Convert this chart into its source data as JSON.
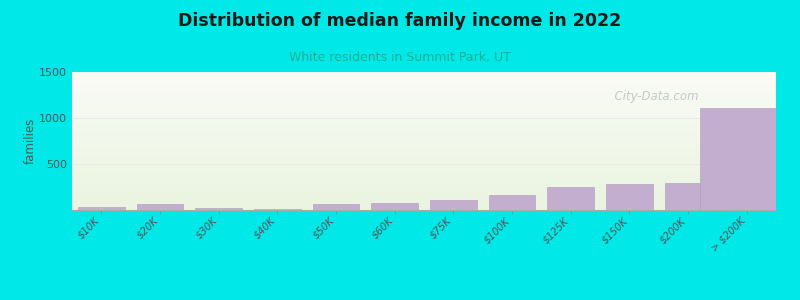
{
  "title": "Distribution of median family income in 2022",
  "subtitle": "White residents in Summit Park, UT",
  "categories": [
    "$10K",
    "$20K",
    "$30K",
    "$40K",
    "$50K",
    "$60K",
    "$75K",
    "$100K",
    "$125K",
    "$150K",
    "$200K",
    "> $200K"
  ],
  "values": [
    28,
    65,
    18,
    12,
    70,
    80,
    110,
    165,
    250,
    285,
    290,
    1110
  ],
  "bar_color": "#c4aed0",
  "bar_edge_color": "#b09ac0",
  "background_outer": "#00e8e8",
  "title_color": "#1a1a1a",
  "subtitle_color": "#20b090",
  "ylabel": "families",
  "ylim": [
    0,
    1500
  ],
  "yticks": [
    0,
    500,
    1000,
    1500
  ],
  "grid_color": "#e8e8e8",
  "watermark_text": "  City-Data.com",
  "watermark_color": "#b8c4b8",
  "bg_color_top": "#e8f2e0",
  "bg_color_bottom": "#f4f8ee"
}
